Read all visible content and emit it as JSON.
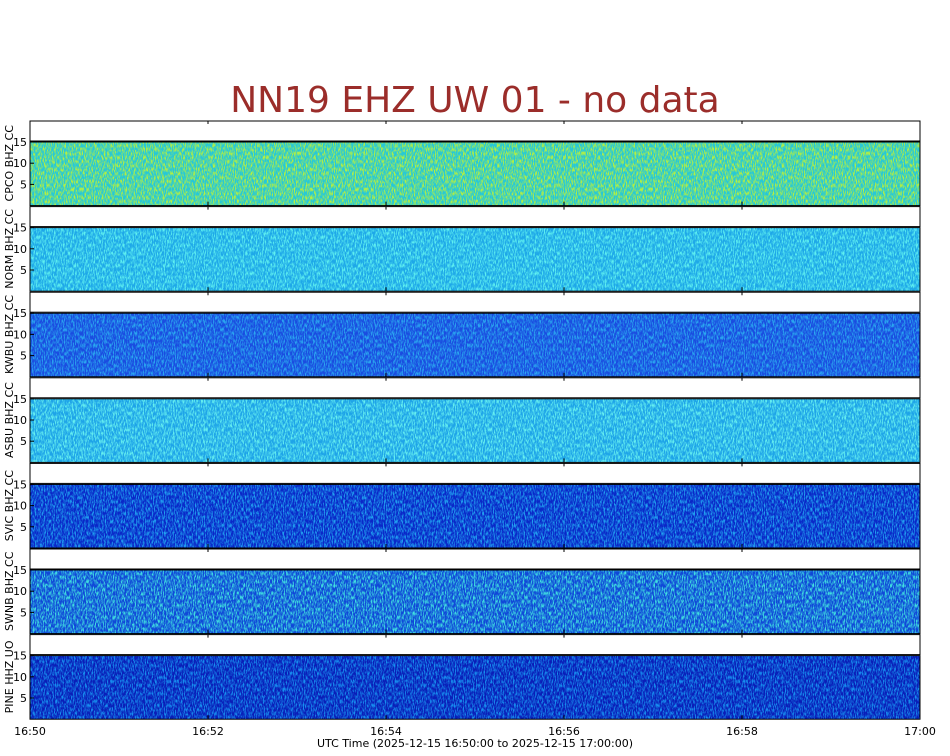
{
  "chart_data": {
    "type": "spectrogram",
    "title": "NN19 EHZ UW 01 - no data",
    "x_label": "UTC Time (2025-12-15 16:50:00 to 2025-12-15 17:00:00)",
    "xticks": [
      "16:50",
      "16:52",
      "16:54",
      "16:56",
      "16:58",
      "17:00"
    ],
    "ylim": [
      0,
      15
    ],
    "yticks": [
      5,
      10,
      15
    ],
    "title_color": "#9b2d2a",
    "panels": [
      {
        "name": "CPCO BHZ CC",
        "color": "#26c8d8",
        "highlight": "#b8f03c"
      },
      {
        "name": "NORM BHZ CC",
        "color": "#1ea8e8",
        "highlight": "#5ef0f0"
      },
      {
        "name": "KWBU BHZ CC",
        "color": "#1a4ce0",
        "highlight": "#2aa8f0"
      },
      {
        "name": "ASBU BHZ CC",
        "color": "#1ea4e8",
        "highlight": "#66f0f0"
      },
      {
        "name": "SVIC BHZ CC",
        "color": "#0a28c8",
        "highlight": "#20a0f0"
      },
      {
        "name": "SWNB BHZ CC",
        "color": "#1048d8",
        "highlight": "#40e0e0"
      },
      {
        "name": "PINE HHZ UO",
        "color": "#0a1eb8",
        "highlight": "#1890f0"
      }
    ]
  }
}
